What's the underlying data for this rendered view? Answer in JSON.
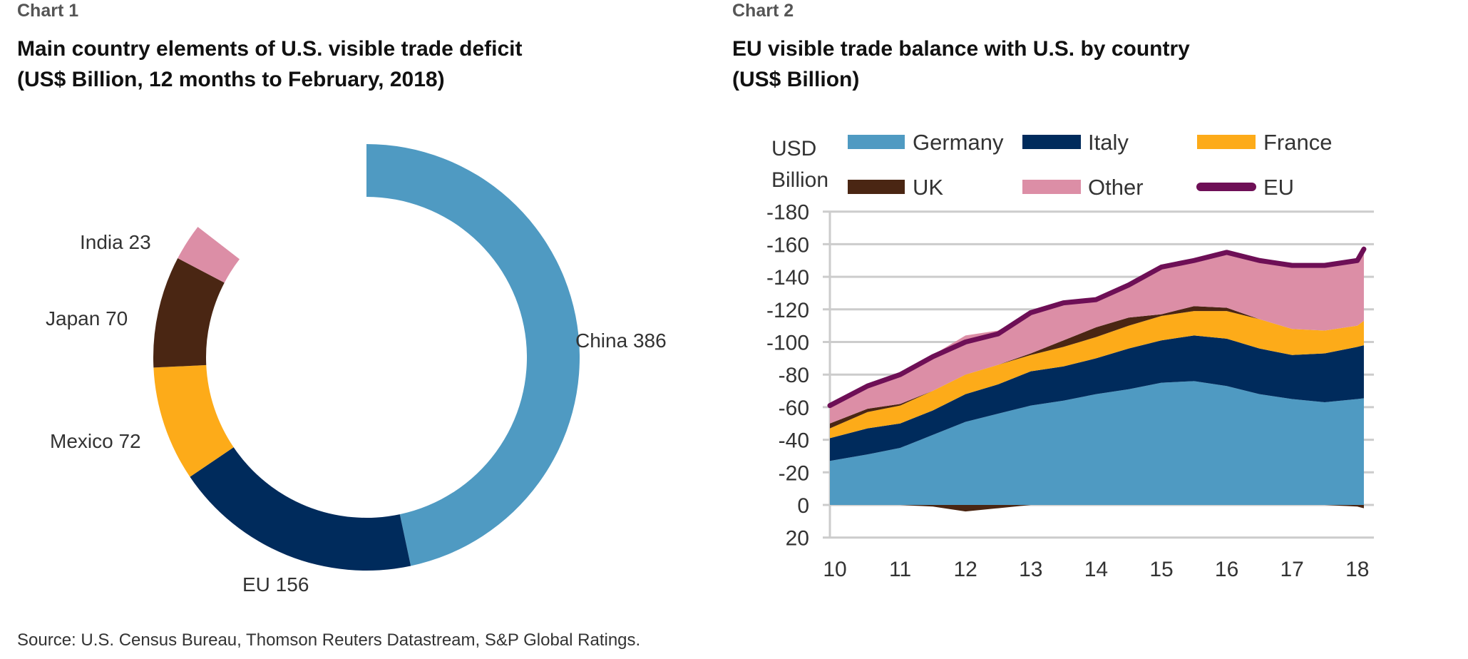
{
  "chart1_label": "Chart 1",
  "chart2_label": "Chart 2",
  "source": "Source: U.S. Census Bureau, Thomson Reuters Datastream, S&P Global Ratings.",
  "chart_data": [
    {
      "type": "pie",
      "title": "Main country elements of U.S. visible trade deficit",
      "subtitle": "(US$ Billion, 12 months to February, 2018)",
      "slices": [
        {
          "label": "China",
          "value": 386,
          "text": "China 386",
          "color": "#4f9ac2"
        },
        {
          "label": "EU",
          "value": 156,
          "text": "EU 156",
          "color": "#002b5c"
        },
        {
          "label": "Mexico",
          "value": 72,
          "text": "Mexico 72",
          "color": "#fdab19"
        },
        {
          "label": "Japan",
          "value": 70,
          "text": "Japan 70",
          "color": "#4a2613"
        },
        {
          "label": "India",
          "value": 23,
          "text": "India 23",
          "color": "#dc8ea6"
        }
      ]
    },
    {
      "type": "area",
      "title": "EU visible trade balance with U.S. by country",
      "subtitle": "(US$ Billion)",
      "ylabel_line1": "USD",
      "ylabel_line2": "Billion",
      "ylim": [
        -180,
        20
      ],
      "yticks": [
        "-180",
        "-160",
        "-140",
        "-120",
        "-100",
        "-80",
        "-60",
        "-40",
        "-20",
        "0",
        "20"
      ],
      "ytick_values": [
        -180,
        -160,
        -140,
        -120,
        -100,
        -80,
        -60,
        -40,
        -20,
        0,
        20
      ],
      "xticks": [
        "10",
        "11",
        "12",
        "13",
        "14",
        "15",
        "16",
        "17",
        "18"
      ],
      "xtick_values": [
        2010,
        2011,
        2012,
        2013,
        2014,
        2015,
        2016,
        2017,
        2018
      ],
      "grid": true,
      "legend_position": "top",
      "x": [
        2010,
        2010.5,
        2011,
        2011.5,
        2012,
        2012.5,
        2013,
        2013.5,
        2014,
        2014.5,
        2015,
        2015.5,
        2016,
        2016.5,
        2017,
        2017.5,
        2018,
        2018.1
      ],
      "series": [
        {
          "name": "Germany",
          "kind": "area",
          "color": "#4f9ac2",
          "values": [
            -27,
            -31,
            -35,
            -43,
            -51,
            -56,
            -61,
            -64,
            -68,
            -71,
            -75,
            -76,
            -73,
            -68,
            -65,
            -63,
            -65,
            -65.5
          ]
        },
        {
          "name": "Italy",
          "kind": "area",
          "color": "#002b5c",
          "values": [
            -14,
            -16,
            -15,
            -15,
            -17,
            -18,
            -21,
            -21,
            -22,
            -25,
            -26,
            -28,
            -29,
            -28,
            -27,
            -30,
            -32,
            -32.5
          ]
        },
        {
          "name": "France",
          "kind": "area",
          "color": "#fdab19",
          "values": [
            -6,
            -10,
            -11,
            -12,
            -12,
            -12,
            -10,
            -12,
            -13,
            -14,
            -15,
            -15,
            -17,
            -18,
            -16,
            -14,
            -13,
            -15
          ]
        },
        {
          "name": "UK",
          "kind": "area",
          "color": "#4a2613",
          "values": [
            -3,
            -2,
            -1,
            1,
            4,
            2,
            -1,
            -4,
            -6,
            -5,
            -1,
            -3,
            -2,
            0,
            0,
            0,
            1,
            2
          ]
        },
        {
          "name": "Other",
          "kind": "area",
          "color": "#dc8ea6",
          "values": [
            -11,
            -14,
            -18,
            -22,
            -24,
            -21,
            -25,
            -23,
            -17,
            -20,
            -29,
            -28,
            -34,
            -36,
            -39,
            -40,
            -41,
            -46
          ]
        },
        {
          "name": "EU",
          "kind": "line",
          "color": "#6e0f56",
          "values": [
            -61,
            -73,
            -80,
            -91,
            -100,
            -105,
            -118,
            -124,
            -126,
            -135,
            -146,
            -150,
            -155,
            -150,
            -147,
            -147,
            -150,
            -157
          ]
        }
      ]
    }
  ]
}
